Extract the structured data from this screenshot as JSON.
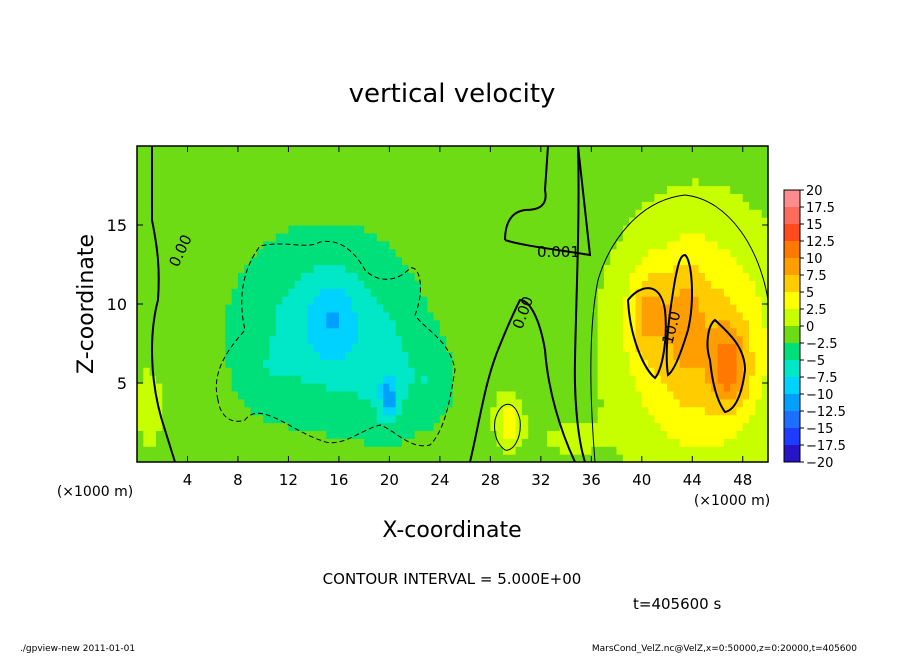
{
  "chart_data": {
    "type": "heatmap",
    "title": "vertical velocity",
    "xlabel": "X-coordinate",
    "ylabel": "Z-coordinate",
    "x_unit": "(×1000 m)",
    "y_unit": "(×1000 m)",
    "xlim": [
      0,
      50
    ],
    "ylim": [
      0,
      20
    ],
    "x_ticks": [
      "4",
      "8",
      "12",
      "16",
      "20",
      "24",
      "28",
      "32",
      "36",
      "40",
      "44",
      "48"
    ],
    "y_ticks": [
      "5",
      "10",
      "15"
    ],
    "colorbar": {
      "labels": [
        "20",
        "17.5",
        "15",
        "12.5",
        "10",
        "7.5",
        "5",
        "2.5",
        "0",
        "−2.5",
        "−5",
        "−7.5",
        "−10",
        "−12.5",
        "−15",
        "−17.5",
        "−20"
      ],
      "colors": [
        "#ff8c8c",
        "#ff6b5a",
        "#ff4a1e",
        "#ff7800",
        "#ff9e00",
        "#ffcc00",
        "#ffff00",
        "#c8ff00",
        "#6edc14",
        "#00e07a",
        "#00e8c8",
        "#00d2ff",
        "#00a0ff",
        "#1e6eff",
        "#1e3cff",
        "#2814c8",
        "#7814c8"
      ]
    },
    "contour_labels": [
      "0.00",
      "0.001",
      "0.00",
      "10.0"
    ],
    "contour_interval": "CONTOUR INTERVAL = 5.000E+00",
    "time": "t=405600 s"
  },
  "footer": {
    "left": "./gpview-new 2011-01-01",
    "right": "MarsCond_VelZ.nc@VelZ,x=0:50000,z=0:20000,t=405600"
  },
  "features": [
    {
      "kind": "down",
      "cx": 15,
      "cy": 8.5,
      "rx": 6.5,
      "ry": 5.5,
      "amp": -5.5
    },
    {
      "kind": "down",
      "cx": 15.5,
      "cy": 9.0,
      "rx": 1.8,
      "ry": 2.6,
      "amp": -3.5
    },
    {
      "kind": "down",
      "cx": 20,
      "cy": 5.0,
      "rx": 2.5,
      "ry": 3.5,
      "amp": -3
    },
    {
      "kind": "down",
      "cx": 20,
      "cy": 4.0,
      "rx": 0.7,
      "ry": 1.3,
      "amp": -6
    },
    {
      "kind": "down",
      "cx": 23.5,
      "cy": 5.0,
      "rx": 1.5,
      "ry": 2.5,
      "amp": -2.5
    },
    {
      "kind": "down",
      "cx": 10,
      "cy": 5.5,
      "rx": 2.0,
      "ry": 2.0,
      "amp": -1.2
    },
    {
      "kind": "up",
      "cx": 44.5,
      "cy": 7.5,
      "rx": 6.0,
      "ry": 7.5,
      "amp": 8
    },
    {
      "kind": "up",
      "cx": 40.5,
      "cy": 9.5,
      "rx": 1.5,
      "ry": 2.8,
      "amp": 5
    },
    {
      "kind": "up",
      "cx": 43.5,
      "cy": 9.5,
      "rx": 1.3,
      "ry": 3.8,
      "amp": 3
    },
    {
      "kind": "up",
      "cx": 47,
      "cy": 6.0,
      "rx": 1.5,
      "ry": 2.5,
      "amp": 7
    },
    {
      "kind": "up",
      "cx": 29.5,
      "cy": 2.5,
      "rx": 1.0,
      "ry": 1.5,
      "amp": 5.5
    },
    {
      "kind": "up",
      "cx": 34,
      "cy": 1.5,
      "rx": 3.0,
      "ry": 1.5,
      "amp": 1.5
    },
    {
      "kind": "up",
      "cx": 1,
      "cy": 3.5,
      "rx": 1.8,
      "ry": 4.0,
      "amp": 1.8
    },
    {
      "kind": "up",
      "cx": 28,
      "cy": 6.5,
      "rx": 1.5,
      "ry": 3.5,
      "amp": 1.2
    }
  ]
}
